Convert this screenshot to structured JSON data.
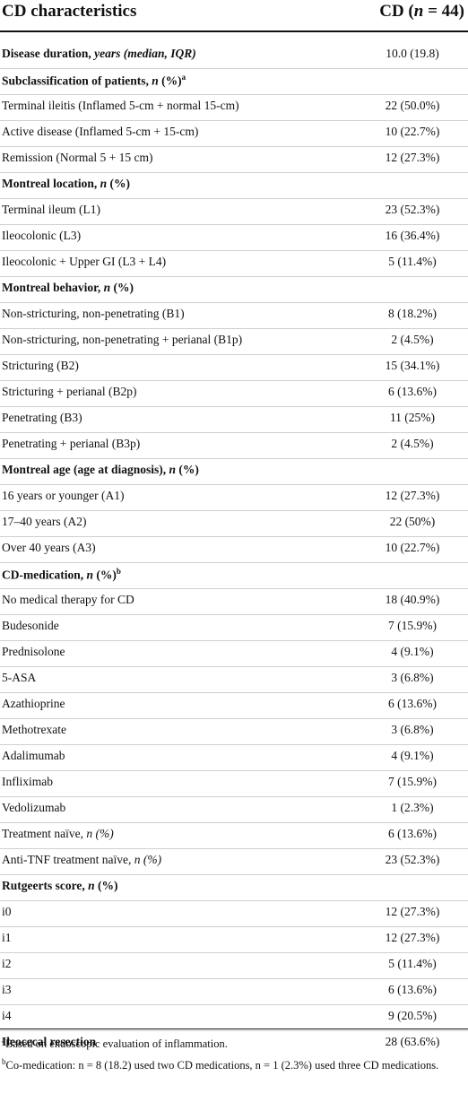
{
  "header": {
    "col1": "CD characteristics",
    "col2_prefix": "CD (",
    "col2_n": "n",
    "col2_suffix": " = 44)"
  },
  "rows": [
    {
      "label": "Disease duration, ",
      "label_it": "years (median, IQR)",
      "value": "10.0 (19.8)",
      "bold": true
    },
    {
      "label": "Subclassification of patients, ",
      "label_n": "n",
      "label_after": " (%)",
      "sup": "a",
      "value": "",
      "bold": true
    },
    {
      "label": "Terminal ileitis (Inflamed 5-cm + normal 15-cm)",
      "value": "22 (50.0%)"
    },
    {
      "label": "Active disease (Inflamed 5-cm + 15-cm)",
      "value": "10 (22.7%)"
    },
    {
      "label": "Remission (Normal 5 + 15 cm)",
      "value": "12 (27.3%)"
    },
    {
      "label": "Montreal location, ",
      "label_n": "n",
      "label_after": " (%)",
      "value": "",
      "bold": true
    },
    {
      "label": "Terminal ileum (L1)",
      "value": "23 (52.3%)"
    },
    {
      "label": "Ileocolonic (L3)",
      "value": "16 (36.4%)"
    },
    {
      "label": "Ileocolonic + Upper GI (L3 + L4)",
      "value": "5 (11.4%)"
    },
    {
      "label": "Montreal behavior, ",
      "label_n": "n",
      "label_after": " (%)",
      "value": "",
      "bold": true
    },
    {
      "label": "Non-stricturing, non-penetrating (B1)",
      "value": "8 (18.2%)"
    },
    {
      "label": "Non-stricturing, non-penetrating + perianal (B1p)",
      "value": "2 (4.5%)"
    },
    {
      "label": "Stricturing (B2)",
      "value": "15 (34.1%)"
    },
    {
      "label": "Stricturing + perianal (B2p)",
      "value": "6 (13.6%)"
    },
    {
      "label": "Penetrating (B3)",
      "value": "11 (25%)"
    },
    {
      "label": "Penetrating + perianal (B3p)",
      "value": "2 (4.5%)"
    },
    {
      "label": "Montreal age (age at diagnosis), ",
      "label_n": "n",
      "label_after": " (%)",
      "value": "",
      "bold": true
    },
    {
      "label": "16 years or younger (A1)",
      "value": "12 (27.3%)"
    },
    {
      "label": "17–40 years (A2)",
      "value": "22 (50%)"
    },
    {
      "label": "Over 40 years (A3)",
      "value": "10 (22.7%)"
    },
    {
      "label": "CD-medication, ",
      "label_n": "n",
      "label_after": " (%)",
      "sup": "b",
      "value": "",
      "bold": true
    },
    {
      "label": "No medical therapy for CD",
      "value": "18 (40.9%)"
    },
    {
      "label": "Budesonide",
      "value": "7 (15.9%)"
    },
    {
      "label": "Prednisolone",
      "value": "4 (9.1%)"
    },
    {
      "label": "5-ASA",
      "value": "3 (6.8%)"
    },
    {
      "label": "Azathioprine",
      "value": "6 (13.6%)"
    },
    {
      "label": "Methotrexate",
      "value": "3 (6.8%)"
    },
    {
      "label": "Adalimumab",
      "value": "4 (9.1%)"
    },
    {
      "label": "Infliximab",
      "value": "7 (15.9%)"
    },
    {
      "label": "Vedolizumab",
      "value": "1 (2.3%)"
    },
    {
      "label": "Treatment naïve, ",
      "label_it": "n (%)",
      "value": "6 (13.6%)"
    },
    {
      "label": "Anti-TNF treatment naïve, ",
      "label_it": "n (%)",
      "value": "23 (52.3%)"
    },
    {
      "label": "Rutgeerts score, ",
      "label_n": "n",
      "label_after": " (%)",
      "value": "",
      "bold": true
    },
    {
      "label": "i0",
      "value": "12 (27.3%)"
    },
    {
      "label": "i1",
      "value": "12 (27.3%)"
    },
    {
      "label": "i2",
      "value": "5 (11.4%)"
    },
    {
      "label": "i3",
      "value": "6 (13.6%)"
    },
    {
      "label": "i4",
      "value": "9 (20.5%)"
    },
    {
      "label": "Ileocecal resection",
      "value": "28 (63.6%)",
      "bold": true
    }
  ],
  "notes": [
    {
      "sup": "a",
      "text": "Based on endoscopic evaluation of inflammation."
    },
    {
      "sup": "b",
      "text": "Co-medication: n = 8 (18.2) used two CD medications, n = 1 (2.3%) used three CD medications."
    }
  ]
}
